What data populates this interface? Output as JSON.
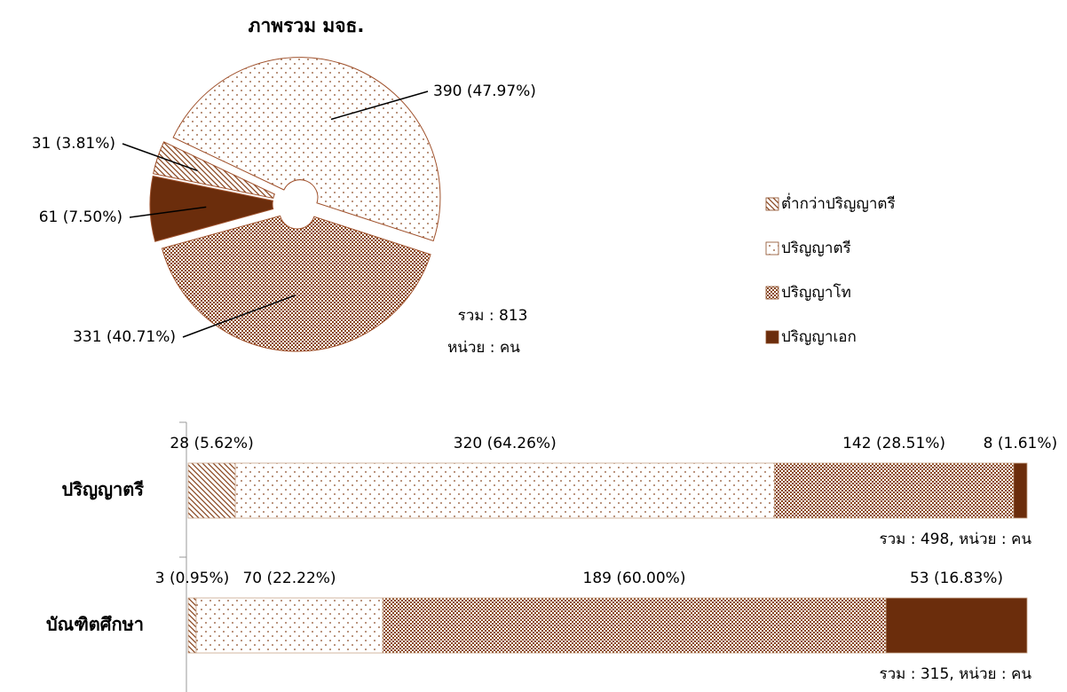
{
  "chart_data": [
    {
      "type": "pie",
      "title": "ภาพรวม มจธ.",
      "categories": [
        "ต่ำกว่าปริญญาตรี",
        "ปริญญาตรี",
        "ปริญญาโท",
        "ปริญญาเอก"
      ],
      "values": [
        31,
        390,
        331,
        61
      ],
      "value_labels": [
        "31 (3.81%)",
        "390 (47.97%)",
        "331 (40.71%)",
        "61 (7.50%)"
      ],
      "colors": [
        "#8b4a24",
        "#8b4a24",
        "#8b4a24",
        "#6b2d0c"
      ],
      "patterns": [
        "diagonal",
        "dots",
        "checker",
        "solid"
      ],
      "annotations": [
        "รวม : 813",
        "หน่วย : คน"
      ]
    },
    {
      "type": "stacked_bar_100",
      "categories": [
        "ปริญญาตรี",
        "บัณฑิตศึกษา"
      ],
      "series": [
        {
          "values": [
            28,
            3
          ],
          "value_labels": [
            "28 (5.62%)",
            "3 (0.95%)"
          ],
          "color": "#8b4a24",
          "pattern": "diagonal"
        },
        {
          "values": [
            320,
            70
          ],
          "value_labels": [
            "320 (64.26%)",
            "70 (22.22%)"
          ],
          "color": "#8b4a24",
          "pattern": "dots"
        },
        {
          "values": [
            142,
            189
          ],
          "value_labels": [
            "142 (28.51%)",
            "189 (60.00%)"
          ],
          "color": "#8b4a24",
          "pattern": "checker"
        },
        {
          "values": [
            8,
            53
          ],
          "value_labels": [
            "8 (1.61%)",
            "53 (16.83%)"
          ],
          "color": "#6b2d0c",
          "pattern": "solid"
        }
      ],
      "annotations": [
        "รวม : 498, หน่วย : คน",
        "รวม : 315, หน่วย : คน"
      ]
    }
  ]
}
